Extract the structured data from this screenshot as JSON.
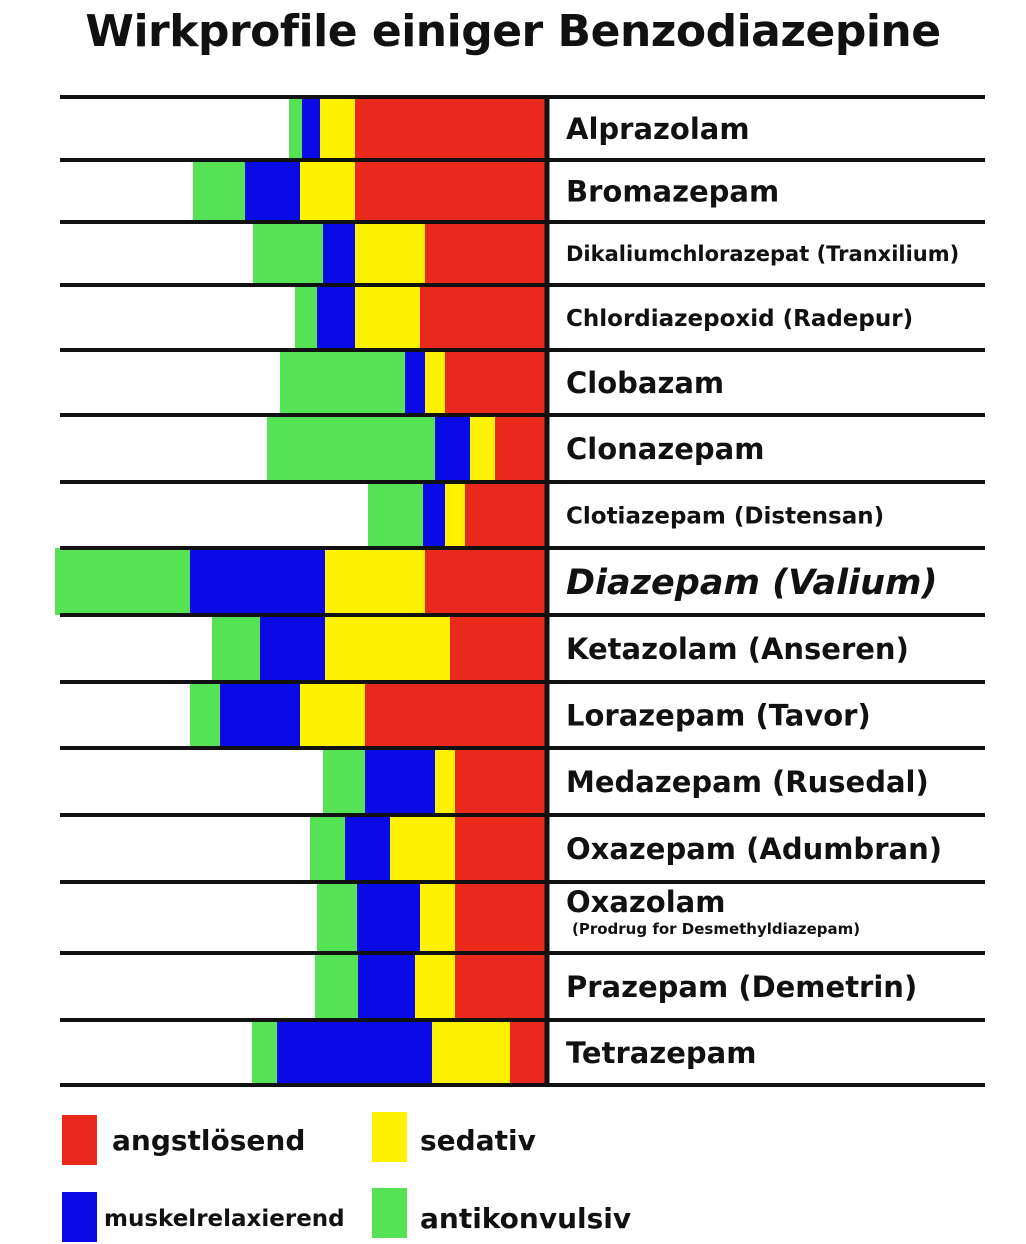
{
  "chart_data": {
    "type": "bar",
    "title": "Wirkprofile einiger Benzodiazepine",
    "categories": [
      "Alprazolam",
      "Bromazepam",
      "Dikaliumchlorazepat (Tranxilium)",
      "Chlordiazepoxid (Radepur)",
      "Clobazam",
      "Clonazepam",
      "Clotiazepam (Distensan)",
      "Diazepam (Valium)",
      "Ketazolam (Anseren)",
      "Lorazepam (Tavor)",
      "Medazepam (Rusedal)",
      "Oxazepam (Adumbran)",
      "Oxazolam",
      "Prazepam (Demetrin)",
      "Tetrazepam"
    ],
    "subtitles": [
      "",
      "",
      "",
      "",
      "",
      "",
      "",
      "",
      "",
      "",
      "",
      "",
      "(Prodrug for Desmethyldiazepam)",
      "",
      ""
    ],
    "highlight_index": 7,
    "series": [
      {
        "name": "angstlösend",
        "color": "#e8291c",
        "values": [
          190,
          190,
          120,
          125,
          100,
          50,
          80,
          120,
          95,
          180,
          90,
          90,
          90,
          90,
          35
        ]
      },
      {
        "name": "sedativ",
        "color": "#fff200",
        "values": [
          35,
          55,
          70,
          65,
          20,
          25,
          20,
          100,
          125,
          65,
          20,
          65,
          35,
          40,
          78
        ]
      },
      {
        "name": "muskelrelaxierend",
        "color": "#0a0ae6",
        "values": [
          18,
          55,
          32,
          38,
          20,
          35,
          22,
          135,
          65,
          80,
          70,
          45,
          63,
          57,
          155
        ]
      },
      {
        "name": "antikonvulsiv",
        "color": "#55e255",
        "values": [
          13,
          52,
          70,
          22,
          125,
          168,
          55,
          135,
          48,
          30,
          42,
          35,
          40,
          43,
          25
        ]
      }
    ],
    "legend_position": "bottom"
  }
}
